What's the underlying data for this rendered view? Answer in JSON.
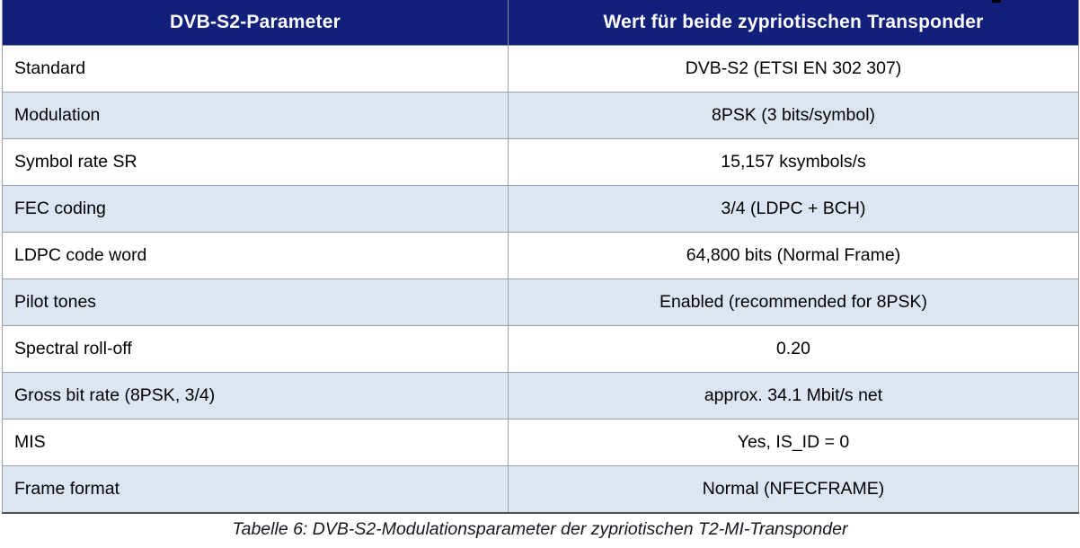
{
  "table": {
    "headers": [
      "DVB-S2-Parameter",
      "Wert für beide zypriotischen Transponder"
    ],
    "rows": [
      {
        "param": "Standard",
        "value": "DVB-S2 (ETSI EN 302 307)"
      },
      {
        "param": "Modulation",
        "value": "8PSK (3 bits/symbol)"
      },
      {
        "param": "Symbol rate SR",
        "value": "15,157 ksymbols/s"
      },
      {
        "param": "FEC coding",
        "value": "3/4 (LDPC + BCH)"
      },
      {
        "param": "LDPC code word",
        "value": "64,800 bits (Normal Frame)"
      },
      {
        "param": "Pilot tones",
        "value": "Enabled (recommended for 8PSK)"
      },
      {
        "param": "Spectral roll-off",
        "value": "0.20"
      },
      {
        "param": "Gross bit rate (8PSK, 3/4)",
        "value": "approx. 34.1 Mbit/s net"
      },
      {
        "param": "MIS",
        "value": "Yes, IS_ID = 0"
      },
      {
        "param": "Frame format",
        "value": "Normal (NFECFRAME)"
      }
    ],
    "caption": "Tabelle 6: DVB-S2-Modulationsparameter der zypriotischen T2-MI-Transponder"
  },
  "colors": {
    "header_bg": "#12207b",
    "header_text": "#ffffff",
    "row_bg": "#ffffff",
    "row_alt_bg": "#dde4f2",
    "grid_border": "#9aa1ab",
    "table_bottom_border": "#4d4e56",
    "caption_text": "#16161f"
  }
}
